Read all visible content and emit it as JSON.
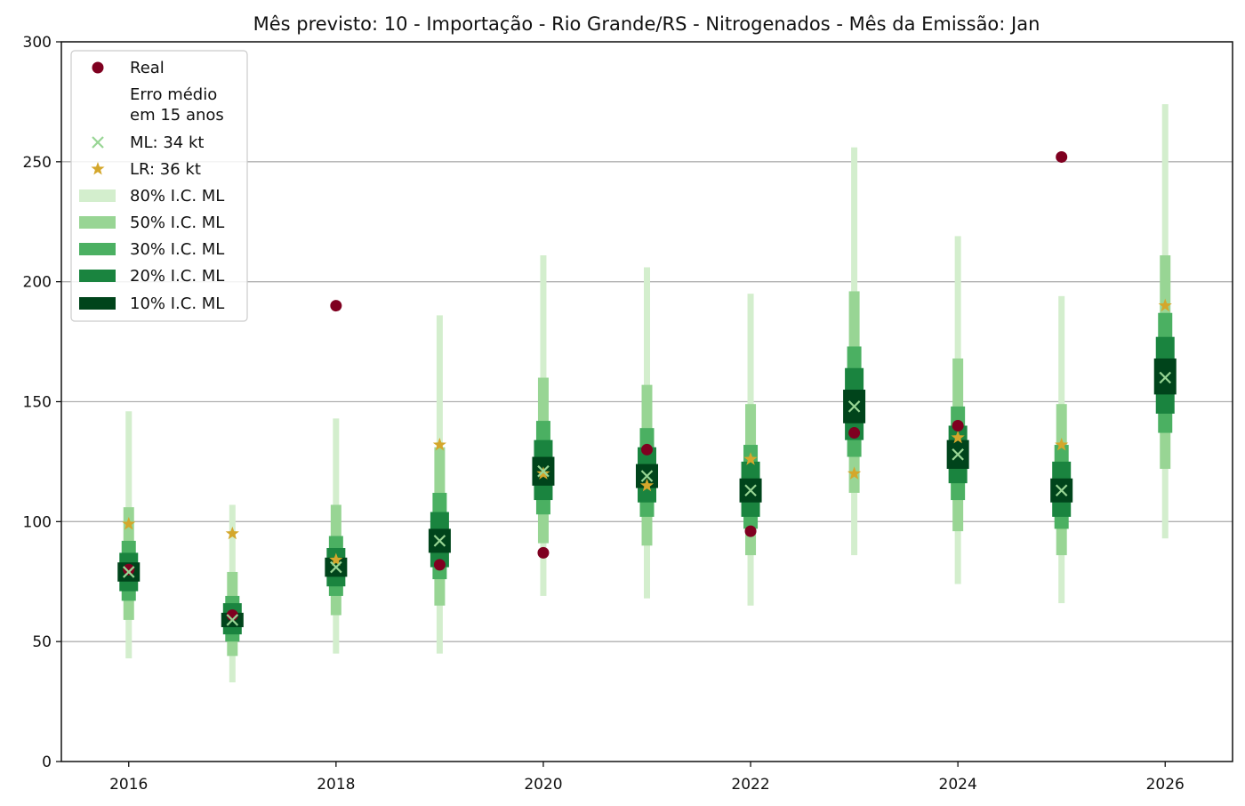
{
  "chart_data": {
    "type": "interval-forecast",
    "title": "Mês previsto: 10 - Importação - Rio Grande/RS - Nitrogenados - Mês da Emissão: Jan",
    "xlabel": "",
    "ylabel": "",
    "xlim": [
      2015.35,
      2026.65
    ],
    "ylim": [
      0,
      300
    ],
    "x_ticks": [
      2016,
      2018,
      2020,
      2022,
      2024,
      2026
    ],
    "y_ticks": [
      0,
      50,
      100,
      150,
      200,
      250,
      300
    ],
    "grid": "horizontal",
    "legend": {
      "placement": "top-left",
      "entries": [
        {
          "key": "real",
          "label": "Real"
        },
        {
          "key": "erro",
          "label": [
            "Erro médio",
            "em 15 anos"
          ]
        },
        {
          "key": "ml",
          "label": "ML: 34 kt"
        },
        {
          "key": "lr",
          "label": "LR: 36 kt"
        },
        {
          "key": "ci80",
          "label": "80% I.C. ML"
        },
        {
          "key": "ci50",
          "label": "50% I.C. ML"
        },
        {
          "key": "ci30",
          "label": "30% I.C. ML"
        },
        {
          "key": "ci20",
          "label": "20% I.C. ML"
        },
        {
          "key": "ci10",
          "label": "10% I.C. ML"
        }
      ]
    },
    "colors": {
      "real": "#7f0020",
      "ml": "#98d594",
      "lr": "#d4a72c",
      "ci80": "#d3eecd",
      "ci50": "#98d594",
      "ci30": "#4bb062",
      "ci20": "#1a843f",
      "ci10": "#00441b"
    },
    "series": [
      {
        "key": "real",
        "name": "Real",
        "x": [
          2016,
          2017,
          2018,
          2019,
          2020,
          2021,
          2022,
          2023,
          2024,
          2025
        ],
        "values": [
          80,
          61,
          190,
          82,
          87,
          130,
          96,
          137,
          140,
          252
        ]
      },
      {
        "key": "ml",
        "name": "ML: 34 kt",
        "x": [
          2016,
          2017,
          2018,
          2019,
          2020,
          2021,
          2022,
          2023,
          2024,
          2025,
          2026
        ],
        "values": [
          79,
          59,
          81,
          92,
          121,
          119,
          113,
          148,
          128,
          113,
          160
        ]
      },
      {
        "key": "lr",
        "name": "LR: 36 kt",
        "x": [
          2016,
          2017,
          2018,
          2019,
          2020,
          2021,
          2022,
          2023,
          2024,
          2025,
          2026
        ],
        "values": [
          99,
          95,
          84,
          132,
          120,
          115,
          126,
          120,
          135,
          132,
          190
        ]
      }
    ],
    "intervals": {
      "ci80": {
        "name": "80% I.C. ML",
        "low": [
          43,
          33,
          45,
          45,
          69,
          68,
          65,
          86,
          74,
          66,
          93
        ],
        "high": [
          146,
          107,
          143,
          186,
          211,
          206,
          195,
          256,
          219,
          194,
          274
        ]
      },
      "ci50": {
        "name": "50% I.C. ML",
        "low": [
          59,
          44,
          61,
          65,
          91,
          90,
          86,
          112,
          96,
          86,
          122
        ],
        "high": [
          106,
          79,
          107,
          131,
          160,
          157,
          149,
          196,
          168,
          149,
          211
        ]
      },
      "ci30": {
        "name": "30% I.C. ML",
        "low": [
          67,
          50,
          69,
          76,
          103,
          102,
          97,
          127,
          109,
          97,
          137
        ],
        "high": [
          92,
          69,
          94,
          112,
          142,
          139,
          132,
          173,
          148,
          132,
          187
        ]
      },
      "ci20": {
        "name": "20% I.C. ML",
        "low": [
          71,
          53,
          73,
          81,
          109,
          108,
          102,
          134,
          116,
          102,
          145
        ],
        "high": [
          87,
          66,
          89,
          104,
          134,
          131,
          125,
          164,
          140,
          125,
          177
        ]
      },
      "ci10": {
        "name": "10% I.C. ML",
        "low": [
          75,
          56,
          77,
          87,
          115,
          114,
          108,
          141,
          122,
          108,
          153
        ],
        "high": [
          83,
          62,
          85,
          97,
          127,
          124,
          118,
          155,
          134,
          118,
          168
        ]
      }
    }
  }
}
